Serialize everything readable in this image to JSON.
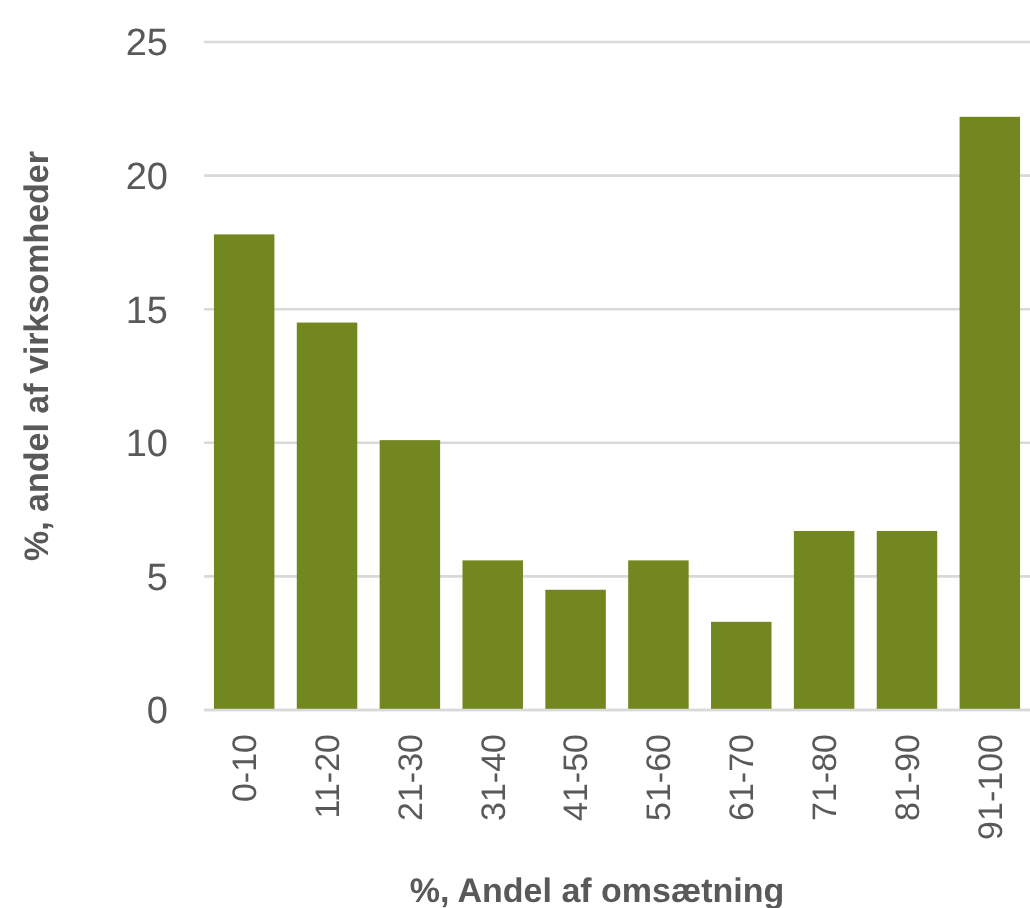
{
  "chart_data": {
    "type": "bar",
    "xlabel": "%, Andel af omsætning",
    "ylabel": "%, andel af virksomheder",
    "categories": [
      "0-10",
      "11-20",
      "21-30",
      "31-40",
      "41-50",
      "51-60",
      "61-70",
      "71-80",
      "81-90",
      "91-100"
    ],
    "values": [
      17.8,
      14.5,
      10.1,
      5.6,
      4.5,
      5.6,
      3.3,
      6.7,
      6.7,
      22.2
    ],
    "color": "#72871f",
    "ylim": [
      0,
      25
    ],
    "yticks": [
      0,
      5,
      10,
      15,
      20,
      25
    ],
    "grid": "y"
  }
}
